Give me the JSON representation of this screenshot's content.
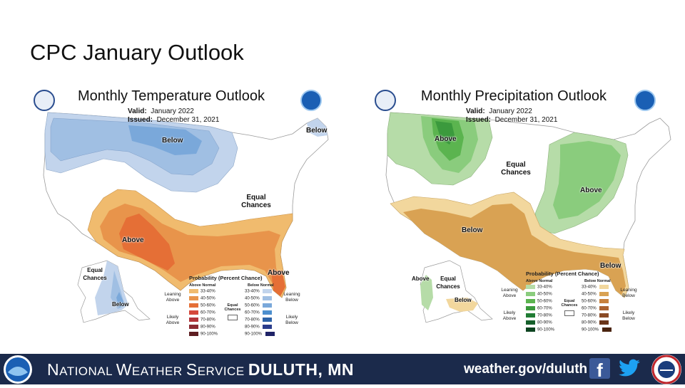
{
  "slide_title": "CPC January Outlook",
  "temperature": {
    "title": "Monthly Temperature Outlook",
    "valid_label": "Valid:",
    "valid_value": "January 2022",
    "issued_label": "Issued:",
    "issued_value": "December 31, 2021",
    "labels": {
      "below_main": "Below",
      "below_ne": "Below",
      "equal_chances": "Equal Chances",
      "above_main": "Above",
      "above_fl": "Above",
      "ak_equal": "Equal Chances",
      "ak_below": "Below"
    },
    "legend": {
      "title": "Probability (Percent Chance)",
      "left_header": "Above Normal",
      "right_header": "Below Normal",
      "leaning_left": "Leaning Above",
      "likely_left": "Likely Above",
      "leaning_right": "Leaning Below",
      "likely_right": "Likely Below",
      "equal": "Equal Chances",
      "ranges": [
        "33-40%",
        "40-50%",
        "50-60%",
        "60-70%",
        "70-80%",
        "80-90%",
        "90-100%"
      ],
      "left_colors": [
        "#f0bb6e",
        "#e8944b",
        "#e56f36",
        "#d5483b",
        "#b3353a",
        "#8c2a32",
        "#5e1e22"
      ],
      "right_colors": [
        "#c2d4ec",
        "#a0bfe3",
        "#7aa8da",
        "#4d8fce",
        "#2e63a8",
        "#2b3d8c",
        "#1f2367"
      ]
    }
  },
  "precipitation": {
    "title": "Monthly Precipitation Outlook",
    "valid_label": "Valid:",
    "valid_value": "January 2022",
    "issued_label": "Issued:",
    "issued_value": "December 31, 2021",
    "labels": {
      "above_nw": "Above",
      "equal_chances": "Equal Chances",
      "above_e": "Above",
      "below_s": "Below",
      "below_fl": "Below",
      "ak_above": "Above",
      "ak_equal": "Equal Chances",
      "ak_below": "Below"
    },
    "legend": {
      "title": "Probability (Percent Chance)",
      "left_header": "Above Normal",
      "right_header": "Below Normal",
      "leaning_left": "Leaning Above",
      "likely_left": "Likely Above",
      "leaning_right": "Leaning Below",
      "likely_right": "Likely Below",
      "equal": "Equal Chances",
      "ranges": [
        "33-40%",
        "40-50%",
        "50-60%",
        "60-70%",
        "70-80%",
        "80-90%",
        "90-100%"
      ],
      "left_colors": [
        "#b6dca8",
        "#8acc7d",
        "#5bb44f",
        "#3b9a3d",
        "#207c34",
        "#165f2b",
        "#0e4420"
      ],
      "right_colors": [
        "#f2d79d",
        "#d9a253",
        "#c7813d",
        "#ab6230",
        "#8a4a25",
        "#6b3519",
        "#4a2410"
      ]
    }
  },
  "footer": {
    "nws_n": "N",
    "nws_ational": "ATIONAL ",
    "nws_w": "W",
    "nws_eather": "EATHER ",
    "nws_s": "S",
    "nws_ervice": "ERVICE ",
    "office": "DULUTH, MN",
    "url": "weather.gov/duluth",
    "facebook_glyph": "f",
    "footer_bg": "#1b2a4b"
  }
}
